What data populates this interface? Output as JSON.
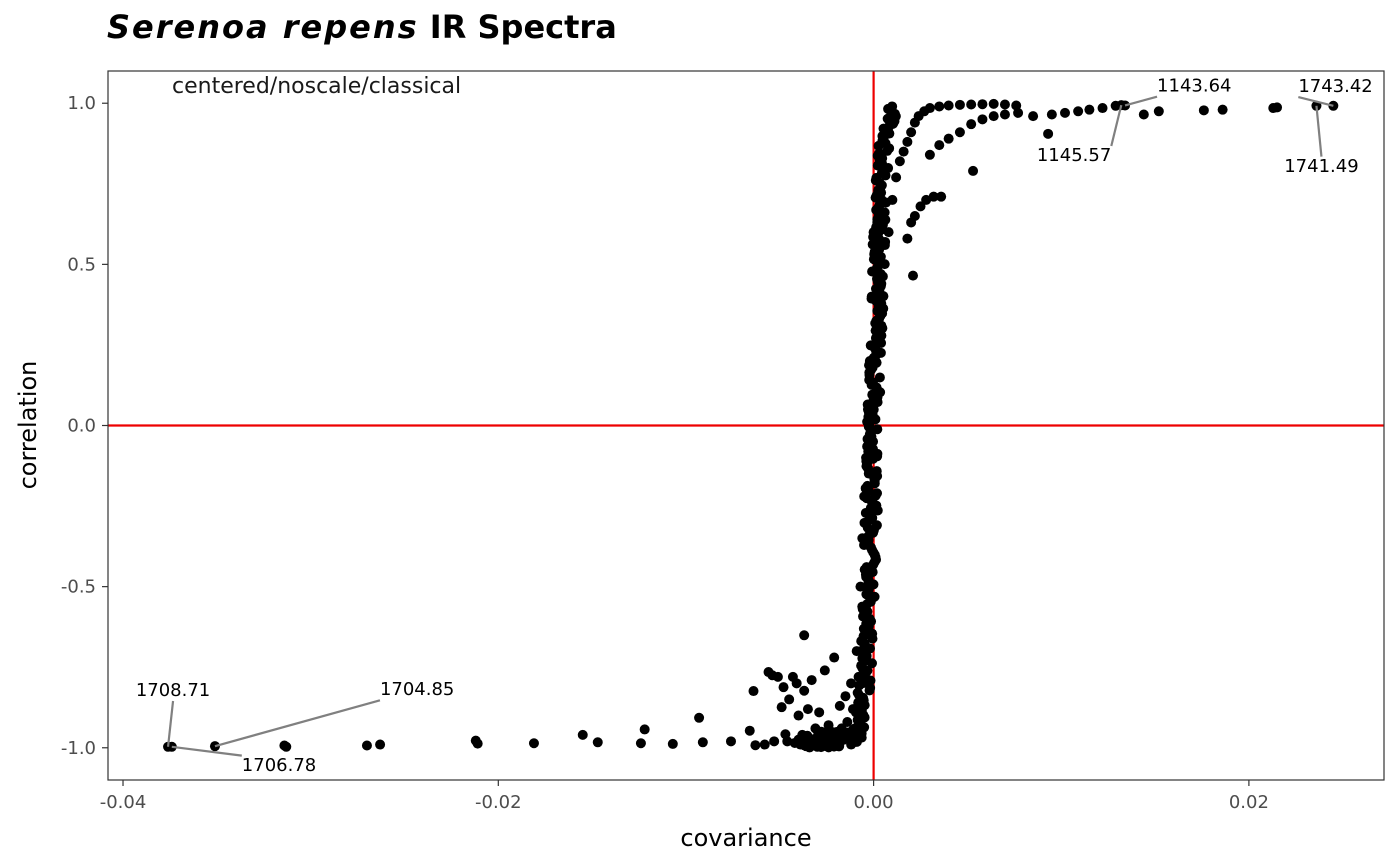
{
  "title": {
    "italic_part": "Serenoa repens",
    "regular_part": "IR Spectra"
  },
  "chart_data": {
    "type": "scatter",
    "title": "Serenoa repens IR Spectra",
    "xlabel": "covariance",
    "ylabel": "correlation",
    "annotation": "centered/noscale/classical",
    "xlim": [
      -0.0408,
      0.0272
    ],
    "ylim": [
      -1.1,
      1.1
    ],
    "x_ticks": [
      -0.04,
      -0.02,
      0.0,
      0.02
    ],
    "x_tick_labels": [
      "-0.04",
      "-0.02",
      "0.00",
      "0.02"
    ],
    "y_ticks": [
      -1.0,
      -0.5,
      0.0,
      0.5,
      1.0
    ],
    "y_tick_labels": [
      "-1.0",
      "-0.5",
      "0.0",
      "0.5",
      "1.0"
    ],
    "grid": false,
    "reference_lines": {
      "x": 0,
      "y": 0,
      "color": "#ee0000"
    },
    "point_color": "#000000",
    "points": [
      [
        -0.0376,
        -0.997
      ],
      [
        -0.0374,
        -0.997
      ],
      [
        -0.0351,
        -0.995
      ],
      [
        -0.0314,
        -0.993
      ],
      [
        -0.0313,
        -0.997
      ],
      [
        -0.027,
        -0.993
      ],
      [
        -0.0263,
        -0.99
      ],
      [
        -0.0212,
        -0.978
      ],
      [
        -0.0211,
        -0.987
      ],
      [
        -0.0181,
        -0.986
      ],
      [
        -0.0155,
        -0.96
      ],
      [
        -0.0147,
        -0.983
      ],
      [
        -0.0124,
        -0.986
      ],
      [
        -0.0122,
        -0.943
      ],
      [
        -0.0107,
        -0.988
      ],
      [
        -0.0093,
        -0.907
      ],
      [
        -0.0091,
        -0.983
      ],
      [
        -0.0076,
        -0.98
      ],
      [
        -0.0066,
        -0.947
      ],
      [
        -0.0064,
        -0.824
      ],
      [
        -0.0063,
        -0.992
      ],
      [
        -0.0058,
        -0.99
      ],
      [
        -0.0056,
        -0.765
      ],
      [
        -0.0054,
        -0.775
      ],
      [
        -0.0053,
        -0.98
      ],
      [
        -0.0051,
        -0.78
      ],
      [
        -0.0049,
        -0.874
      ],
      [
        -0.0048,
        -0.812
      ],
      [
        -0.0047,
        -0.958
      ],
      [
        -0.0046,
        -0.98
      ],
      [
        -0.0045,
        -0.85
      ],
      [
        -0.0043,
        -0.78
      ],
      [
        -0.0042,
        -0.985
      ],
      [
        -0.0041,
        -0.8
      ],
      [
        -0.004,
        -0.9
      ],
      [
        -0.0039,
        -0.99
      ],
      [
        -0.0038,
        -0.96
      ],
      [
        -0.0037,
        -0.823
      ],
      [
        -0.0037,
        -0.651
      ],
      [
        -0.0036,
        -0.995
      ],
      [
        -0.0035,
        -0.88
      ],
      [
        -0.0034,
        -0.998
      ],
      [
        -0.0033,
        -0.79
      ],
      [
        -0.0032,
        -0.99
      ],
      [
        -0.0031,
        -0.94
      ],
      [
        -0.003,
        -0.997
      ],
      [
        -0.0029,
        -0.89
      ],
      [
        -0.0028,
        -0.998
      ],
      [
        -0.0027,
        -0.98
      ],
      [
        -0.0026,
        -0.76
      ],
      [
        -0.0025,
        -0.995
      ],
      [
        -0.0024,
        -0.93
      ],
      [
        -0.0023,
        -0.98
      ],
      [
        -0.0022,
        -0.99
      ],
      [
        -0.0021,
        -0.72
      ],
      [
        -0.002,
        -0.96
      ],
      [
        -0.0019,
        -0.985
      ],
      [
        -0.0018,
        -0.87
      ],
      [
        -0.0017,
        -0.94
      ],
      [
        -0.0016,
        -0.975
      ],
      [
        -0.0015,
        -0.84
      ],
      [
        -0.0014,
        -0.92
      ],
      [
        -0.0013,
        -0.96
      ],
      [
        -0.0012,
        -0.8
      ],
      [
        -0.0011,
        -0.88
      ],
      [
        -0.001,
        -0.94
      ],
      [
        -0.0009,
        -0.7
      ],
      [
        -0.0008,
        -0.78
      ],
      [
        -0.0007,
        -0.5
      ],
      [
        -0.0006,
        -0.35
      ],
      [
        -0.0005,
        -0.22
      ],
      [
        -0.0004,
        -0.1
      ],
      [
        -0.0003,
        0.05
      ],
      [
        -0.0002,
        0.2
      ],
      [
        -0.0001,
        0.4
      ],
      [
        0.0,
        0.6
      ],
      [
        0.0002,
        0.64
      ],
      [
        0.0004,
        0.62
      ],
      [
        0.0006,
        0.56
      ],
      [
        0.0008,
        0.6
      ],
      [
        0.001,
        0.7
      ],
      [
        0.0012,
        0.77
      ],
      [
        0.0014,
        0.82
      ],
      [
        0.0016,
        0.85
      ],
      [
        0.0018,
        0.88
      ],
      [
        0.002,
        0.91
      ],
      [
        0.0022,
        0.94
      ],
      [
        0.0024,
        0.96
      ],
      [
        0.0027,
        0.975
      ],
      [
        0.003,
        0.985
      ],
      [
        0.0035,
        0.99
      ],
      [
        0.004,
        0.993
      ],
      [
        0.0046,
        0.995
      ],
      [
        0.0052,
        0.996
      ],
      [
        0.0058,
        0.997
      ],
      [
        0.0064,
        0.998
      ],
      [
        0.007,
        0.996
      ],
      [
        0.0076,
        0.993
      ],
      [
        0.0018,
        0.58
      ],
      [
        0.002,
        0.63
      ],
      [
        0.0022,
        0.65
      ],
      [
        0.0025,
        0.68
      ],
      [
        0.0028,
        0.7
      ],
      [
        0.0032,
        0.71
      ],
      [
        0.0036,
        0.71
      ],
      [
        0.0021,
        0.465
      ],
      [
        0.0053,
        0.79
      ],
      [
        0.003,
        0.84
      ],
      [
        0.0035,
        0.87
      ],
      [
        0.004,
        0.89
      ],
      [
        0.0046,
        0.91
      ],
      [
        0.0052,
        0.935
      ],
      [
        0.0058,
        0.95
      ],
      [
        0.0064,
        0.96
      ],
      [
        0.007,
        0.965
      ],
      [
        0.0077,
        0.97
      ],
      [
        0.0085,
        0.96
      ],
      [
        0.0093,
        0.905
      ],
      [
        0.0095,
        0.965
      ],
      [
        0.0102,
        0.97
      ],
      [
        0.0109,
        0.975
      ],
      [
        0.0115,
        0.98
      ],
      [
        0.0122,
        0.985
      ],
      [
        0.0129,
        0.992
      ],
      [
        0.0132,
        0.994
      ],
      [
        0.0134,
        0.993
      ],
      [
        0.0144,
        0.965
      ],
      [
        0.0152,
        0.975
      ],
      [
        0.0176,
        0.978
      ],
      [
        0.0186,
        0.98
      ],
      [
        0.0213,
        0.985
      ],
      [
        0.0215,
        0.987
      ],
      [
        0.0236,
        0.992
      ],
      [
        0.0245,
        0.992
      ]
    ],
    "labels": [
      {
        "text": "1708.71",
        "x": -0.0376,
        "y": -0.997
      },
      {
        "text": "1704.85",
        "x": -0.0351,
        "y": -0.995
      },
      {
        "text": "1706.78",
        "x": -0.0374,
        "y": -0.997
      },
      {
        "text": "1143.64",
        "x": 0.0134,
        "y": 0.993
      },
      {
        "text": "1145.57",
        "x": 0.0132,
        "y": 0.994
      },
      {
        "text": "1743.42",
        "x": 0.0245,
        "y": 0.992
      },
      {
        "text": "1741.49",
        "x": 0.0236,
        "y": 0.992
      }
    ]
  }
}
